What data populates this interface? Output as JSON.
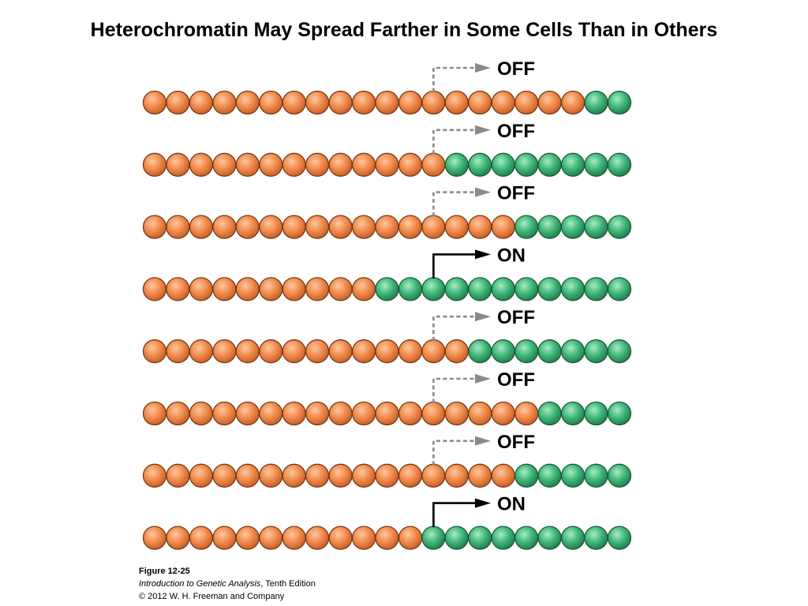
{
  "title": "Heterochromatin May Spread Farther in Some Cells Than in Others",
  "diagram": {
    "total_nucleosomes": 21,
    "gene_start_index": 12,
    "colors": {
      "heterochromatin": "#f08a4b",
      "heterochromatin_stroke": "#7a3a14",
      "euchromatin": "#3fb678",
      "euchromatin_stroke": "#1d5c3a",
      "off_arrow": "#8a8a8a",
      "on_arrow": "#000000"
    },
    "rows": [
      {
        "orange_count": 19,
        "state": "OFF"
      },
      {
        "orange_count": 13,
        "state": "OFF"
      },
      {
        "orange_count": 16,
        "state": "OFF"
      },
      {
        "orange_count": 10,
        "state": "ON"
      },
      {
        "orange_count": 14,
        "state": "OFF"
      },
      {
        "orange_count": 17,
        "state": "OFF"
      },
      {
        "orange_count": 16,
        "state": "OFF"
      },
      {
        "orange_count": 12,
        "state": "ON"
      }
    ]
  },
  "caption": {
    "figure": "Figure 12-25",
    "book_title": "Introduction to Genetic Analysis",
    "edition": ", Tenth Edition",
    "copyright": "© 2012 W. H. Freeman and Company"
  }
}
